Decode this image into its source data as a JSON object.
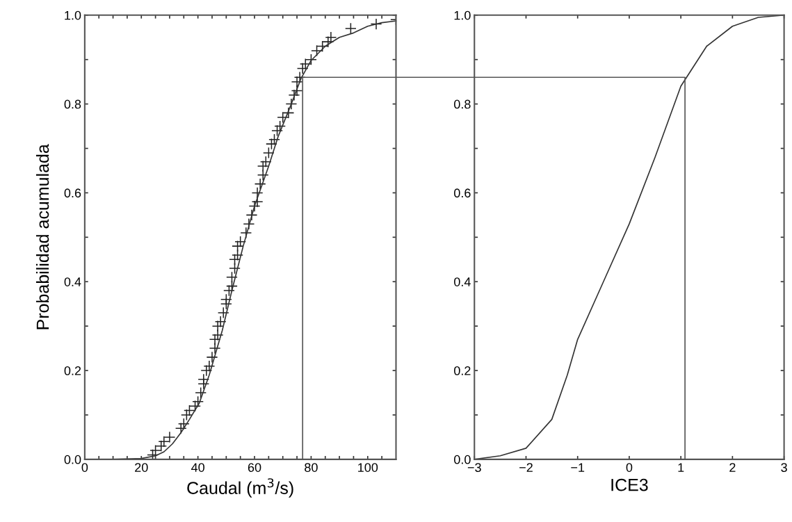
{
  "chart_data": [
    {
      "type": "scatter",
      "xlabel": "Caudal (m$^{3}$/s)",
      "ylabel": "Probabilidad acumulada",
      "xlim": [
        0,
        110
      ],
      "ylim": [
        0,
        1
      ],
      "xticks": [
        0,
        {
          "value": 5,
          "label": null
        },
        {
          "value": 10,
          "label": null
        },
        {
          "value": 15,
          "label": null
        },
        20,
        {
          "value": 25,
          "label": null
        },
        {
          "value": 30,
          "label": null
        },
        {
          "value": 35,
          "label": null
        },
        40,
        {
          "value": 45,
          "label": null
        },
        {
          "value": 50,
          "label": null
        },
        {
          "value": 55,
          "label": null
        },
        60,
        {
          "value": 65,
          "label": null
        },
        {
          "value": 70,
          "label": null
        },
        {
          "value": 75,
          "label": null
        },
        80,
        {
          "value": 85,
          "label": null
        },
        {
          "value": 90,
          "label": null
        },
        {
          "value": 95,
          "label": null
        },
        100,
        {
          "value": 105,
          "label": null
        }
      ],
      "yticks": [
        {
          "value": 0,
          "label": "0.0"
        },
        {
          "value": 0.1,
          "label": null
        },
        {
          "value": 0.2,
          "label": "0.2"
        },
        {
          "value": 0.3,
          "label": null
        },
        {
          "value": 0.4,
          "label": "0.4"
        },
        {
          "value": 0.5,
          "label": null
        },
        {
          "value": 0.6,
          "label": "0.6"
        },
        {
          "value": 0.7,
          "label": null
        },
        {
          "value": 0.8,
          "label": "0.8"
        },
        {
          "value": 0.9,
          "label": null
        },
        {
          "value": 1.0,
          "label": "1.0"
        }
      ],
      "grid": false,
      "legend": false,
      "series": [
        {
          "marker": "cross",
          "color": "#222222",
          "x": [
            24,
            25,
            27,
            28,
            30,
            34,
            35,
            36,
            37,
            39,
            40,
            41,
            42,
            42,
            43,
            44,
            45,
            46,
            46,
            47,
            47,
            48,
            49,
            50,
            50,
            51,
            52,
            52,
            53,
            53,
            54,
            54,
            55,
            57,
            58,
            59,
            60,
            61,
            61,
            62,
            63,
            63,
            64,
            65,
            66,
            67,
            68,
            69,
            70,
            72,
            73,
            74,
            75,
            75,
            76,
            77,
            78,
            80,
            82,
            84,
            86,
            87,
            94,
            103,
            110
          ],
          "values": [
            0.01,
            0.02,
            0.03,
            0.04,
            0.05,
            0.07,
            0.08,
            0.1,
            0.11,
            0.12,
            0.13,
            0.15,
            0.17,
            0.18,
            0.2,
            0.21,
            0.23,
            0.25,
            0.27,
            0.28,
            0.3,
            0.31,
            0.33,
            0.35,
            0.36,
            0.38,
            0.39,
            0.41,
            0.43,
            0.45,
            0.46,
            0.48,
            0.49,
            0.51,
            0.53,
            0.55,
            0.57,
            0.58,
            0.6,
            0.62,
            0.64,
            0.66,
            0.67,
            0.69,
            0.71,
            0.72,
            0.74,
            0.75,
            0.77,
            0.78,
            0.8,
            0.82,
            0.83,
            0.85,
            0.86,
            0.88,
            0.89,
            0.9,
            0.92,
            0.93,
            0.94,
            0.95,
            0.97,
            0.98,
            0.99
          ]
        },
        {
          "type": "line",
          "marker": "none",
          "line_style": "solid",
          "color": "#333333",
          "x": [
            0,
            10,
            20,
            25,
            28,
            31,
            34,
            37,
            40.5,
            44,
            48.6,
            52,
            56,
            60,
            65,
            68.3,
            73,
            76.4,
            80,
            85,
            90,
            95,
            100,
            105,
            110
          ],
          "values": [
            0,
            0,
            0.002,
            0.008,
            0.017,
            0.035,
            0.06,
            0.09,
            0.127,
            0.19,
            0.29,
            0.38,
            0.48,
            0.57,
            0.66,
            0.726,
            0.8,
            0.857,
            0.898,
            0.93,
            0.95,
            0.96,
            0.975,
            0.983,
            0.987
          ]
        },
        {
          "type": "line",
          "marker": "none",
          "line_style": "solid",
          "color": "#555555",
          "x": [
            77,
            77,
            110
          ],
          "values": [
            0,
            0.86,
            0.86
          ]
        }
      ]
    },
    {
      "type": "line",
      "xlabel": "ICE3",
      "xlim": [
        -3,
        3
      ],
      "ylim": [
        0,
        1
      ],
      "xticks": [
        {
          "value": -3,
          "label": "−3"
        },
        {
          "value": -2,
          "label": "−2"
        },
        {
          "value": -1,
          "label": "−1"
        },
        0,
        1,
        2,
        3
      ],
      "yticks": [
        {
          "value": 0,
          "label": "0.0"
        },
        {
          "value": 0.1,
          "label": null
        },
        {
          "value": 0.2,
          "label": "0.2"
        },
        {
          "value": 0.3,
          "label": null
        },
        {
          "value": 0.4,
          "label": "0.4"
        },
        {
          "value": 0.5,
          "label": null
        },
        {
          "value": 0.6,
          "label": "0.6"
        },
        {
          "value": 0.7,
          "label": null
        },
        {
          "value": 0.8,
          "label": "0.8"
        },
        {
          "value": 0.9,
          "label": null
        },
        {
          "value": 1.0,
          "label": "1.0"
        }
      ],
      "grid": false,
      "legend": false,
      "series": [
        {
          "marker": "none",
          "line_style": "solid",
          "color": "#333333",
          "x": [
            -3,
            -2.5,
            -2,
            -1.5,
            -1.2,
            -1,
            -0.5,
            0,
            0.5,
            1,
            1.5,
            2,
            2.5,
            3
          ],
          "values": [
            0,
            0.008,
            0.025,
            0.09,
            0.19,
            0.27,
            0.4,
            0.53,
            0.68,
            0.84,
            0.93,
            0.975,
            0.995,
            1.0
          ]
        },
        {
          "marker": "none",
          "line_style": "solid",
          "color": "#555555",
          "x": [
            -3,
            1.08,
            1.08
          ],
          "values": [
            0.86,
            0.86,
            0
          ]
        }
      ]
    }
  ]
}
